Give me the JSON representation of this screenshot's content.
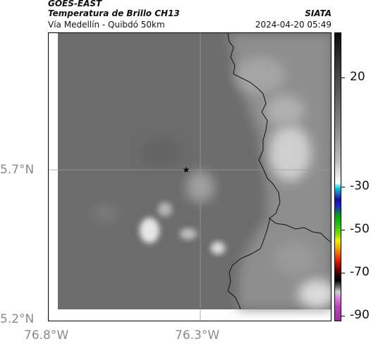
{
  "header": {
    "satellite": "GOES-EAST",
    "product": "Temperatura de Brillo CH13",
    "route": "Vía Medellín - Quibdó 50km",
    "agency": "SIATA",
    "datetime": "2024-04-20 05:49"
  },
  "map": {
    "lat_labels": [
      "5.7°N",
      "5.2°N"
    ],
    "lon_labels": [
      "76.8°W",
      "76.3°W"
    ],
    "marker": "star-marker"
  },
  "colorbar": {
    "labels": [
      "20",
      "-30",
      "-50",
      "-70",
      "-90"
    ],
    "colors": {
      "warm": "#4a4a4a",
      "cyan": "#00c8e0",
      "blue": "#1010a0",
      "green": "#10c010",
      "yellow": "#f0f000",
      "red": "#e02000",
      "dark": "#300000",
      "magenta": "#c040c0"
    }
  }
}
